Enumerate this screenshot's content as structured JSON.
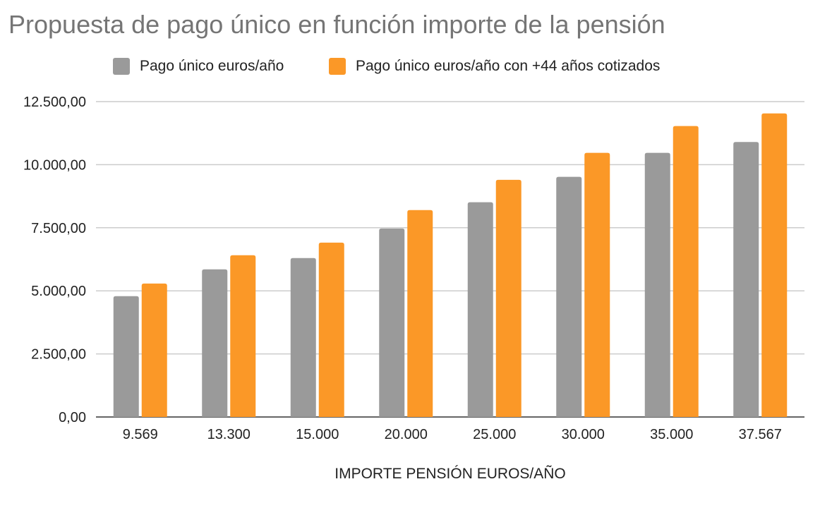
{
  "chart_data": {
    "type": "bar",
    "title": "Propuesta de pago único en función importe de la pensión",
    "xlabel": "IMPORTE PENSIÓN EUROS/AÑO",
    "ylabel": "",
    "categories": [
      "9.569",
      "13.300",
      "15.000",
      "20.000",
      "25.000",
      "30.000",
      "35.000",
      "37.567"
    ],
    "series": [
      {
        "name": "Pago único euros/año",
        "color": "#9a9a9a",
        "values": [
          4790,
          5850,
          6300,
          7470,
          8510,
          9520,
          10470,
          10900
        ]
      },
      {
        "name": "Pago único euros/año con +44 años cotizados",
        "color": "#fb9827",
        "values": [
          5290,
          6410,
          6910,
          8200,
          9400,
          10470,
          11530,
          12030
        ]
      }
    ],
    "ylim": [
      0,
      12500
    ],
    "yticks": [
      0,
      2500,
      5000,
      7500,
      10000,
      12500
    ],
    "ytick_labels": [
      "0,00",
      "2.500,00",
      "5.000,00",
      "7.500,00",
      "10.000,00",
      "12.500,00"
    ],
    "grid": true,
    "legend_position": "top"
  }
}
